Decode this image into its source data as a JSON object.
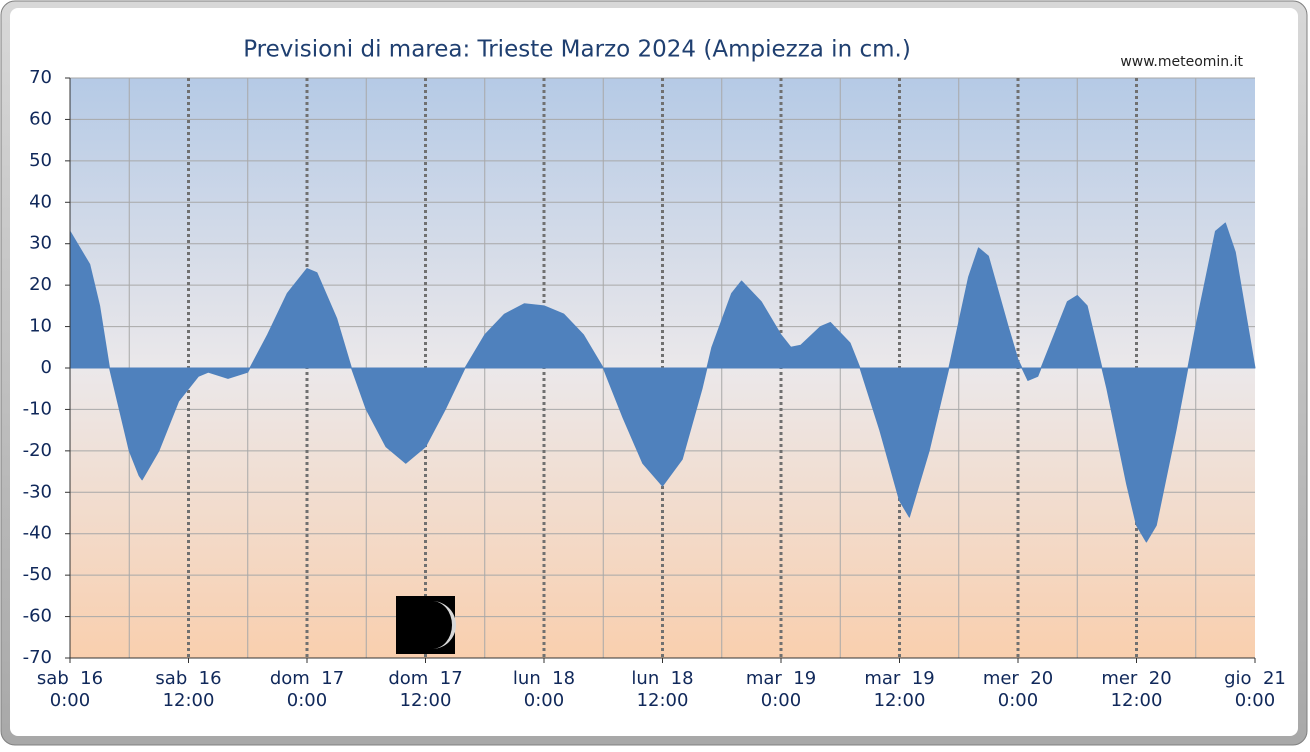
{
  "chart_data": {
    "type": "area",
    "title": "Previsioni di marea: Trieste Marzo 2024 (Ampiezza in cm.)",
    "watermark": "www.meteomin.it",
    "color": "#4f81bd",
    "x": [
      0,
      2,
      3,
      4,
      6,
      7,
      7.3,
      9,
      11,
      13,
      14,
      16,
      18,
      20,
      22,
      24,
      25,
      27,
      28.5,
      30,
      32,
      34,
      36,
      38,
      40,
      42,
      44,
      46,
      48,
      50,
      52,
      54,
      56,
      58,
      60,
      62,
      64,
      65,
      67,
      68,
      70,
      72,
      73,
      74,
      76,
      77,
      79,
      80,
      82,
      84,
      85,
      87,
      89,
      91,
      92,
      93,
      95,
      96,
      97,
      98,
      100,
      101,
      102,
      103,
      104,
      105,
      107,
      108,
      109,
      110,
      112,
      114,
      116,
      117,
      118,
      120
    ],
    "values": [
      33,
      25,
      15,
      0,
      -20,
      -26,
      -27,
      -20,
      -8,
      -2,
      -1,
      -2.5,
      -1,
      8,
      18,
      24,
      23,
      12,
      0,
      -10,
      -19,
      -23,
      -19,
      -10,
      0,
      8,
      13,
      15.5,
      15,
      13,
      8,
      0,
      -12,
      -23,
      -28.5,
      -22,
      -5,
      5,
      18,
      21,
      16,
      8,
      5,
      5.5,
      10,
      11,
      6,
      0,
      -15,
      -32,
      -36,
      -20,
      0,
      22,
      29,
      27,
      10,
      2,
      -3,
      -2,
      10,
      16,
      17.5,
      15,
      5,
      -5,
      -28,
      -38,
      -42,
      -38,
      -15,
      10,
      33,
      35,
      28,
      0
    ],
    "xlim": [
      0,
      120
    ],
    "xticks": [
      {
        "value": 0,
        "label": [
          "sab  16",
          "0:00"
        ]
      },
      {
        "value": 12,
        "label": [
          "sab  16",
          "12:00"
        ]
      },
      {
        "value": 24,
        "label": [
          "dom  17",
          "0:00"
        ]
      },
      {
        "value": 36,
        "label": [
          "dom  17",
          "12:00"
        ]
      },
      {
        "value": 48,
        "label": [
          "lun  18",
          "0:00"
        ]
      },
      {
        "value": 60,
        "label": [
          "lun  18",
          "12:00"
        ]
      },
      {
        "value": 72,
        "label": [
          "mar  19",
          "0:00"
        ]
      },
      {
        "value": 84,
        "label": [
          "mar  19",
          "12:00"
        ]
      },
      {
        "value": 96,
        "label": [
          "mer  20",
          "0:00"
        ]
      },
      {
        "value": 108,
        "label": [
          "mer  20",
          "12:00"
        ]
      },
      {
        "value": 120,
        "label": [
          "gio  21",
          "0:00"
        ]
      }
    ],
    "xminorticks": [
      6,
      18,
      30,
      42,
      54,
      66,
      78,
      90,
      102,
      114
    ],
    "ylim": [
      -70,
      70
    ],
    "yticks": [
      -70,
      -60,
      -50,
      -40,
      -30,
      -20,
      -10,
      0,
      10,
      20,
      30,
      40,
      50,
      60,
      70
    ],
    "grid": true
  }
}
